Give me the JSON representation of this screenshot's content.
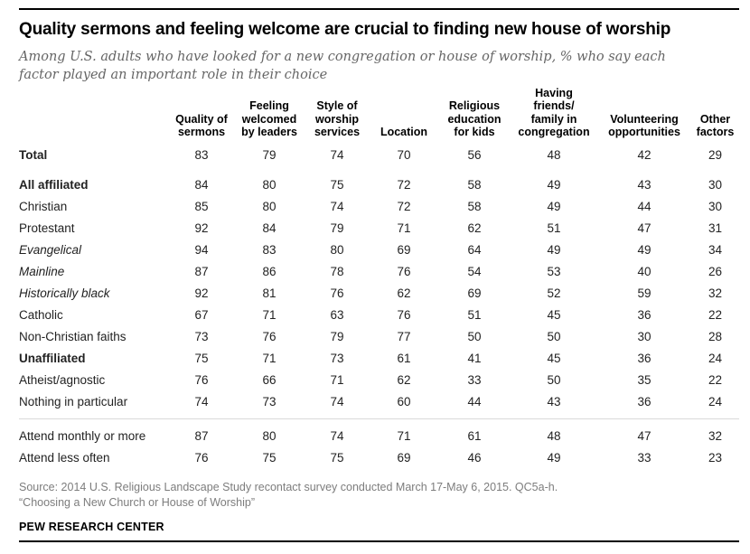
{
  "title": "Quality sermons and feeling welcome are crucial to finding new house of worship",
  "subtitle": "Among U.S. adults who have looked for a new congregation or house of worship, % who say each factor played an important role in their choice",
  "chart_data": {
    "type": "table",
    "columns": [
      {
        "label": "Quality of sermons",
        "lines": [
          "Quality of",
          "sermons"
        ]
      },
      {
        "label": "Feeling welcomed by leaders",
        "lines": [
          "Feeling",
          "welcomed",
          "by leaders"
        ]
      },
      {
        "label": "Style of worship services",
        "lines": [
          "Style of",
          "worship",
          "services"
        ]
      },
      {
        "label": "Location",
        "lines": [
          "Location"
        ]
      },
      {
        "label": "Religious education for kids",
        "lines": [
          "Religious",
          "education",
          "for kids"
        ]
      },
      {
        "label": "Having friends/family in congregation",
        "lines": [
          "Having",
          "friends/",
          "family in",
          "congregation"
        ]
      },
      {
        "label": "Volunteering opportunities",
        "lines": [
          "Volunteering",
          "opportunities"
        ]
      },
      {
        "label": "Other factors",
        "lines": [
          "Other",
          "factors"
        ]
      }
    ],
    "rows": [
      {
        "label": "Total",
        "bold": true,
        "indent": 0,
        "values": [
          83,
          79,
          74,
          70,
          56,
          48,
          42,
          29
        ]
      },
      {
        "label": "All affiliated",
        "bold": true,
        "indent": 0,
        "gap_before": true,
        "values": [
          84,
          80,
          75,
          72,
          58,
          49,
          43,
          30
        ]
      },
      {
        "label": "Christian",
        "indent": 1,
        "values": [
          85,
          80,
          74,
          72,
          58,
          49,
          44,
          30
        ]
      },
      {
        "label": "Protestant",
        "indent": 2,
        "values": [
          92,
          84,
          79,
          71,
          62,
          51,
          47,
          31
        ]
      },
      {
        "label": "Evangelical",
        "italic": true,
        "indent": 3,
        "values": [
          94,
          83,
          80,
          69,
          64,
          49,
          49,
          34
        ]
      },
      {
        "label": "Mainline",
        "italic": true,
        "indent": 3,
        "values": [
          87,
          86,
          78,
          76,
          54,
          53,
          40,
          26
        ]
      },
      {
        "label": "Historically black",
        "italic": true,
        "indent": 3,
        "values": [
          92,
          81,
          76,
          62,
          69,
          52,
          59,
          32
        ]
      },
      {
        "label": "Catholic",
        "indent": 2,
        "values": [
          67,
          71,
          63,
          76,
          51,
          45,
          36,
          22
        ]
      },
      {
        "label": "Non-Christian faiths",
        "indent": 1,
        "values": [
          73,
          76,
          79,
          77,
          50,
          50,
          30,
          28
        ]
      },
      {
        "label": "Unaffiliated",
        "bold": true,
        "indent": 0,
        "values": [
          75,
          71,
          73,
          61,
          41,
          45,
          36,
          24
        ]
      },
      {
        "label": "Atheist/agnostic",
        "indent": 2,
        "values": [
          76,
          66,
          71,
          62,
          33,
          50,
          35,
          22
        ]
      },
      {
        "label": "Nothing in particular",
        "indent": 2,
        "values": [
          74,
          73,
          74,
          60,
          44,
          43,
          36,
          24
        ]
      },
      {
        "label": "Attend monthly or more",
        "indent": 0,
        "divider_before": true,
        "values": [
          87,
          80,
          74,
          71,
          61,
          48,
          47,
          32
        ]
      },
      {
        "label": "Attend less often",
        "indent": 0,
        "values": [
          76,
          75,
          75,
          69,
          46,
          49,
          33,
          23
        ]
      }
    ]
  },
  "footer": {
    "source_line1": "Source: 2014 U.S. Religious Landscape Study recontact survey conducted March 17-May 6, 2015. QC5a-h.",
    "source_line2": "“Choosing a New Church or House of Worship”",
    "brand": "PEW RESEARCH CENTER"
  },
  "colors": {
    "rule": "#000000",
    "text": "#222222",
    "subtitle_text": "#666666",
    "source_text": "#7d7d7d",
    "divider": "#d9d9d9"
  }
}
